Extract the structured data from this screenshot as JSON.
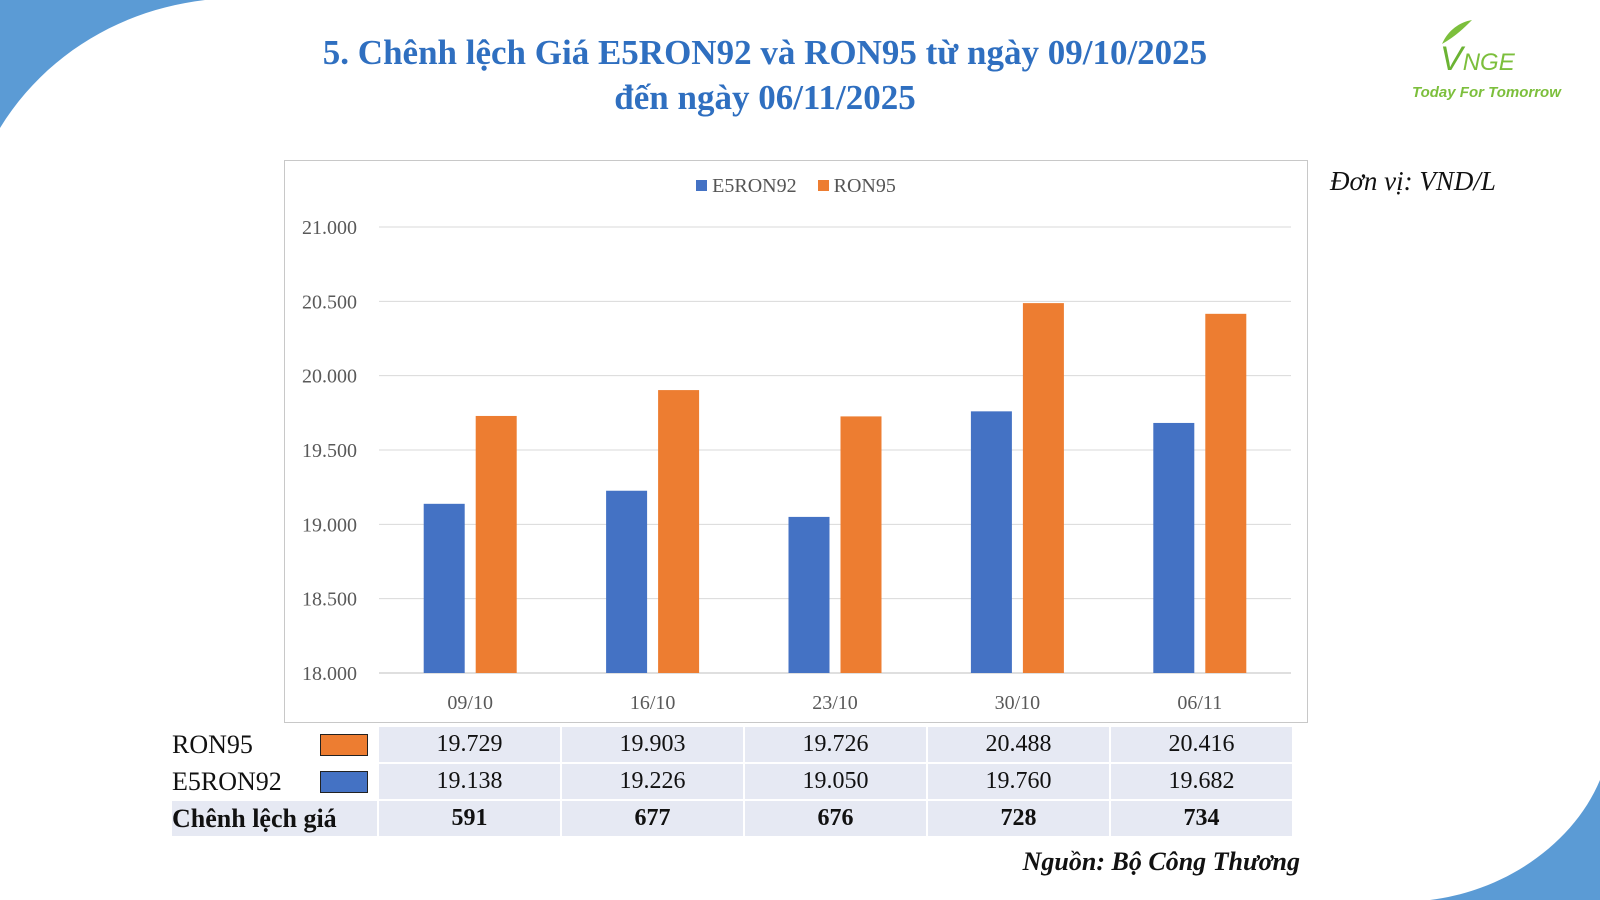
{
  "title": {
    "line1": "5. Chênh lệch Giá E5RON92 và RON95 từ ngày 09/10/2025",
    "line2": "đến ngày 06/11/2025"
  },
  "logo": {
    "mark_big": "V",
    "mark_small": "NGE",
    "tagline": "Today For Tomorrow"
  },
  "unit_label": "Đơn vị: VND/L",
  "source_label": "Nguồn: Bộ Công Thương",
  "colors": {
    "title": "#2f6fc0",
    "e5ron92": "#4472c4",
    "ron95": "#ed7d31",
    "table_bg": "#e6e9f3",
    "decor_blue": "#5b9bd5"
  },
  "chart_data": {
    "type": "bar",
    "categories": [
      "09/10",
      "16/10",
      "23/10",
      "30/10",
      "06/11"
    ],
    "series": [
      {
        "name": "E5RON92",
        "values": [
          19138,
          19226,
          19050,
          19760,
          19682
        ],
        "color": "#4472c4"
      },
      {
        "name": "RON95",
        "values": [
          19729,
          19903,
          19726,
          20488,
          20416
        ],
        "color": "#ed7d31"
      }
    ],
    "ylim": [
      18000,
      21000
    ],
    "yticks": [
      18000,
      18500,
      19000,
      19500,
      20000,
      20500,
      21000
    ],
    "ytick_labels": [
      "18.000",
      "18.500",
      "19.000",
      "19.500",
      "20.000",
      "20.500",
      "21.000"
    ],
    "grid": true,
    "legend_position": "top-center"
  },
  "table": {
    "rows": [
      {
        "label": "RON95",
        "key_color": "#ed7d31",
        "values": [
          "19.729",
          "19.903",
          "19.726",
          "20.488",
          "20.416"
        ]
      },
      {
        "label": "E5RON92",
        "key_color": "#4472c4",
        "values": [
          "19.138",
          "19.226",
          "19.050",
          "19.760",
          "19.682"
        ]
      },
      {
        "label": "Chênh lệch giá",
        "values": [
          "591",
          "677",
          "676",
          "728",
          "734"
        ]
      }
    ]
  }
}
